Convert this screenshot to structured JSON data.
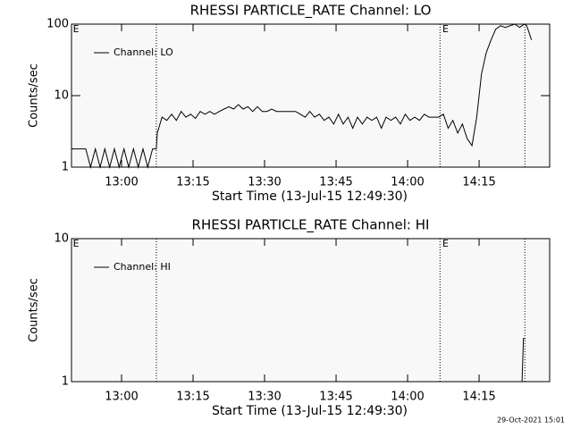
{
  "chart_data": [
    {
      "type": "line",
      "title": "RHESSI PARTICLE_RATE Channel: LO",
      "xlabel": "Start Time (13-Jul-15 12:49:30)",
      "ylabel": "Counts/sec",
      "x": [
        0,
        1,
        2,
        3,
        4,
        5,
        6,
        7,
        8,
        9,
        10,
        11,
        12,
        13,
        14,
        15,
        16,
        17,
        17.8,
        18,
        19,
        20,
        21,
        22,
        23,
        24,
        25,
        26,
        27,
        28,
        29,
        30,
        31,
        32,
        33,
        34,
        35,
        36,
        37,
        38,
        39,
        40,
        41,
        42,
        43,
        44,
        45,
        46,
        47,
        48,
        49,
        50,
        51,
        52,
        53,
        54,
        55,
        56,
        57,
        58,
        59,
        60,
        61,
        62,
        63,
        64,
        65,
        66,
        67,
        68,
        69,
        70,
        71,
        72,
        73,
        74,
        75,
        76,
        77,
        78,
        79,
        80,
        81,
        82,
        83,
        84,
        85,
        86,
        87,
        88,
        89,
        90,
        91,
        92,
        93,
        94,
        95,
        95.5,
        96.5
      ],
      "series": [
        {
          "name": "Channel: LO",
          "color": "#000000",
          "values": [
            1.8,
            1.8,
            1.8,
            1.8,
            1,
            1.8,
            1,
            1.8,
            1,
            1.8,
            1,
            1.8,
            1,
            1.8,
            1,
            1.8,
            1,
            1.8,
            1.8,
            3,
            5,
            4.5,
            5.5,
            4.5,
            6,
            5,
            5.5,
            4.8,
            6,
            5.5,
            6,
            5.5,
            6,
            6.5,
            7,
            6.5,
            7.5,
            6.5,
            7,
            6,
            7,
            6,
            6,
            6.5,
            6,
            6,
            6,
            6,
            6,
            5.5,
            5,
            6,
            5,
            5.5,
            4.5,
            5,
            4,
            5.5,
            4,
            5,
            3.5,
            5,
            4,
            5,
            4.5,
            5,
            3.5,
            5,
            4.5,
            5,
            4,
            5.5,
            4.5,
            5,
            4.5,
            5.5,
            5,
            5,
            5,
            5.5,
            3.5,
            4.5,
            3,
            4,
            2.5,
            2,
            5,
            20,
            40,
            60,
            85,
            95,
            90,
            95,
            100,
            90,
            100,
            95,
            60
          ]
        }
      ],
      "xlim": [
        0,
        100.3
      ],
      "xticks": [
        {
          "value": 10.5,
          "label": "13:00"
        },
        {
          "value": 25.5,
          "label": "13:15"
        },
        {
          "value": 40.5,
          "label": "13:30"
        },
        {
          "value": 55.5,
          "label": "13:45"
        },
        {
          "value": 70.5,
          "label": "14:00"
        },
        {
          "value": 85.5,
          "label": "14:15"
        }
      ],
      "ylim": [
        1,
        100
      ],
      "yticks": [
        1,
        10,
        100
      ],
      "log_y": true,
      "vlines": [
        17.8,
        77.3,
        95.1
      ],
      "annotations": [
        {
          "text": "E",
          "x": 0.3
        },
        {
          "text": "E",
          "x": 77.8
        }
      ]
    },
    {
      "type": "line",
      "title": "RHESSI PARTICLE_RATE Channel: HI",
      "xlabel": "Start Time (13-Jul-15 12:49:30)",
      "ylabel": "Counts/sec",
      "x": [
        0,
        94.5,
        94.8,
        95.2
      ],
      "series": [
        {
          "name": "Channel: HI",
          "color": "#000000",
          "values": [
            1,
            1,
            2,
            2
          ]
        }
      ],
      "xlim": [
        0,
        100.3
      ],
      "xticks": [
        {
          "value": 10.5,
          "label": "13:00"
        },
        {
          "value": 25.5,
          "label": "13:15"
        },
        {
          "value": 40.5,
          "label": "13:30"
        },
        {
          "value": 55.5,
          "label": "13:45"
        },
        {
          "value": 70.5,
          "label": "14:00"
        },
        {
          "value": 85.5,
          "label": "14:15"
        }
      ],
      "ylim": [
        1,
        10
      ],
      "yticks": [
        1,
        10
      ],
      "log_y": true,
      "vlines": [
        17.8,
        77.3,
        95.1
      ],
      "annotations": [
        {
          "text": "E",
          "x": 0.3
        },
        {
          "text": "E",
          "x": 77.8
        }
      ]
    }
  ],
  "timestamp": "29-Oct-2021 15:01"
}
